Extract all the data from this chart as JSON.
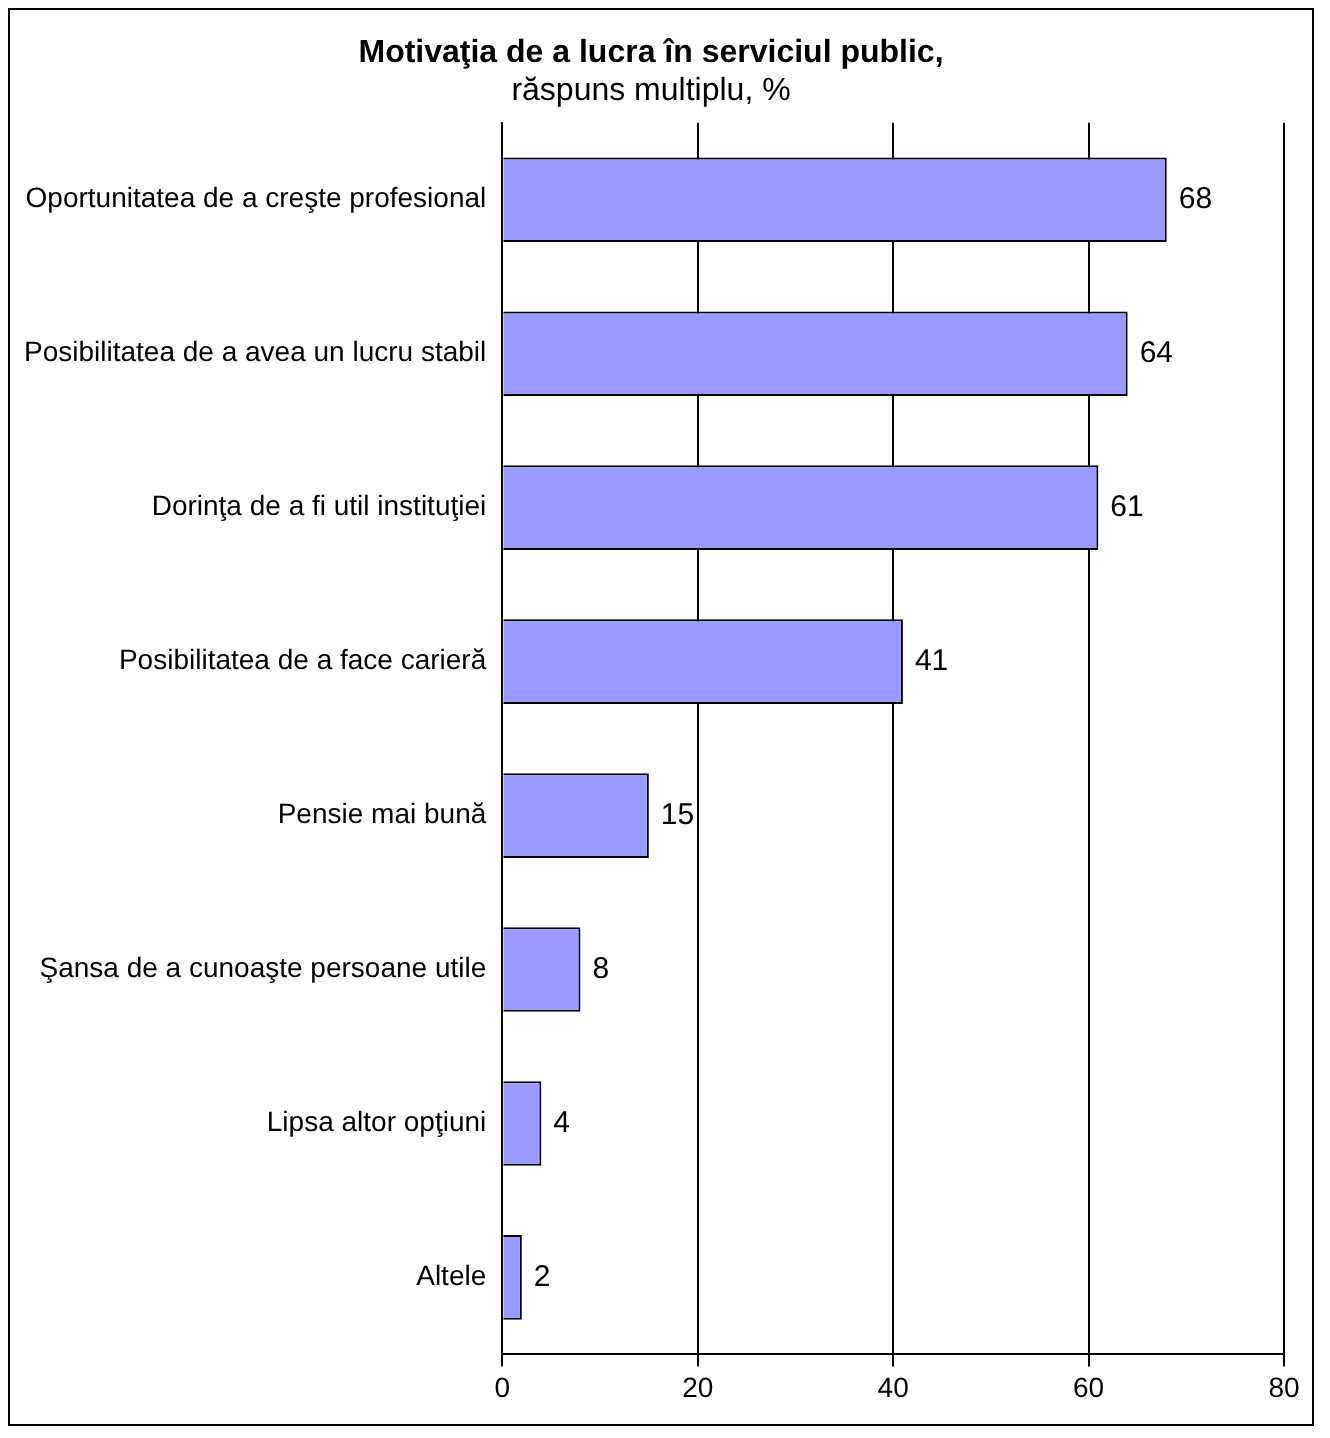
{
  "chart_data": {
    "type": "bar",
    "orientation": "horizontal",
    "title": "Motivaţia de a lucra în serviciul public,",
    "subtitle": "răspuns multiplu, %",
    "categories": [
      "Oportunitatea de a creşte profesional",
      "Posibilitatea de a avea un lucru stabil",
      "Dorinţa de a fi util instituţiei",
      "Posibilitatea de a face carieră",
      "Pensie mai bună",
      "Şansa de a cunoaşte persoane utile",
      "Lipsa altor opţiuni",
      "Altele"
    ],
    "values": [
      68,
      64,
      61,
      41,
      15,
      8,
      4,
      2
    ],
    "color": "#9999ff",
    "xlim": [
      0,
      80
    ],
    "xticks": [
      0,
      20,
      40,
      60,
      80
    ],
    "grid": "x",
    "data_labels": true,
    "legend": false
  }
}
